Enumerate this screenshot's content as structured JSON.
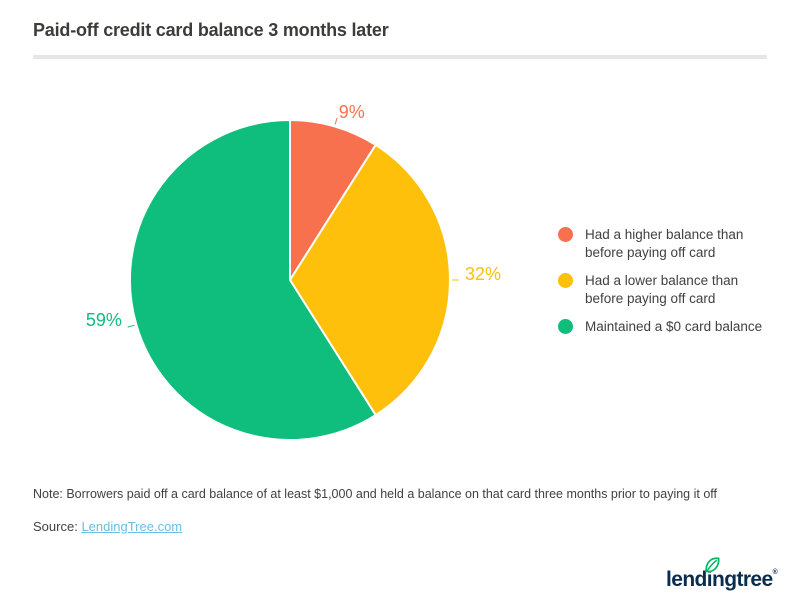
{
  "header": {
    "title": "Paid-off credit card balance 3 months later"
  },
  "chart_data": {
    "type": "pie",
    "title": "Paid-off credit card balance 3 months later",
    "direction": "clockwise",
    "start_angle_deg": 0,
    "legend_position": "right",
    "total": 100,
    "slices": [
      {
        "value": 9,
        "label": "9%",
        "color": "#F8714F",
        "legend": "Had a higher balance than\nbefore paying off card"
      },
      {
        "value": 32,
        "label": "32%",
        "color": "#FEC00A",
        "legend": "Had a lower balance than\nbefore paying off card"
      },
      {
        "value": 59,
        "label": "59%",
        "color": "#0FBD7C",
        "legend": "Maintained a $0 card balance"
      }
    ]
  },
  "footer": {
    "note": "Note: Borrowers paid off a card balance of at least $1,000 and held a balance on that card three months prior to paying it off",
    "source_label": "Source:",
    "source_link": "LendingTree.com"
  },
  "logo": {
    "text": "lendingtree",
    "registered": "®"
  },
  "colors": {
    "title_text": "#3C3C3B",
    "body_text": "#414042",
    "divider": "#E6E6E6",
    "link": "#6BBEE4",
    "logo_navy": "#0A2D4D",
    "leaf_green": "#00B964"
  }
}
